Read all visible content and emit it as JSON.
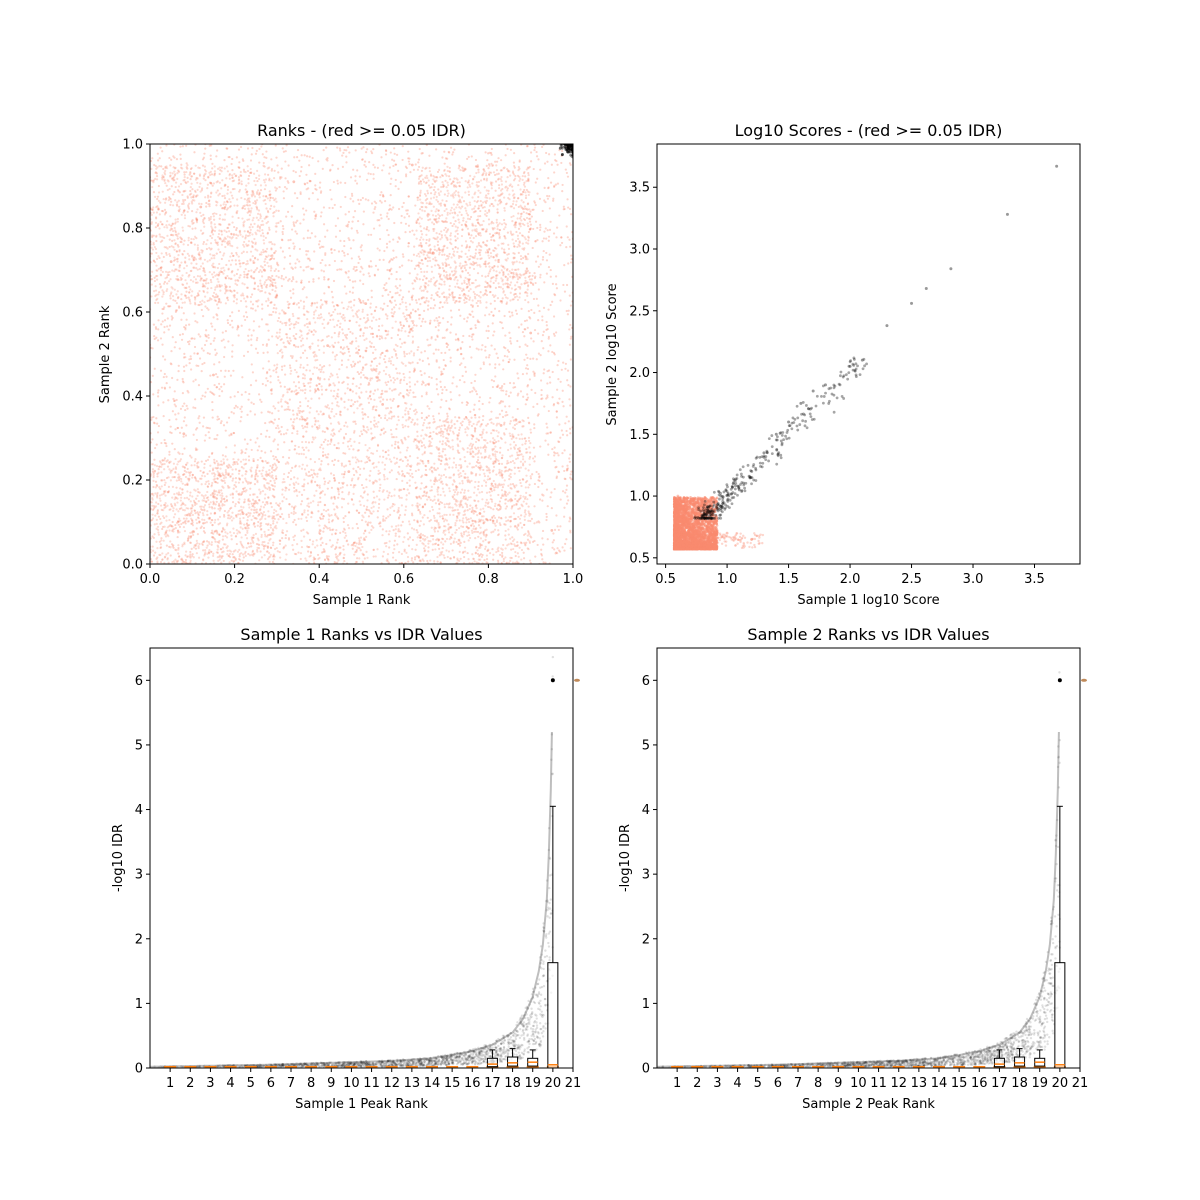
{
  "figure": {
    "background": "#ffffff"
  },
  "colors": {
    "fail": "#fa8a6f",
    "pass": "#000000",
    "box_median": "#ff7f0e",
    "frame": "#000000"
  },
  "chart_data": [
    {
      "type": "scatter",
      "title": "Ranks - (red >= 0.05 IDR)",
      "xlabel": "Sample 1 Rank",
      "ylabel": "Sample 2 Rank",
      "xlim": [
        0.0,
        1.0
      ],
      "ylim": [
        0.0,
        1.0
      ],
      "xticks": [
        {
          "v": 0.0,
          "label": "0.0"
        },
        {
          "v": 0.2,
          "label": "0.2"
        },
        {
          "v": 0.4,
          "label": "0.4"
        },
        {
          "v": 0.6,
          "label": "0.6"
        },
        {
          "v": 0.8,
          "label": "0.8"
        },
        {
          "v": 1.0,
          "label": "1.0"
        }
      ],
      "yticks": [
        {
          "v": 0.0,
          "label": "0.0"
        },
        {
          "v": 0.2,
          "label": "0.2"
        },
        {
          "v": 0.4,
          "label": "0.4"
        },
        {
          "v": 0.6,
          "label": "0.6"
        },
        {
          "v": 0.8,
          "label": "0.8"
        },
        {
          "v": 1.0,
          "label": "1.0"
        }
      ],
      "series": [
        {
          "color_key": "fail",
          "points": [
            [
              0.05,
              0.72
            ],
            [
              0.12,
              0.85
            ],
            [
              0.18,
              0.66
            ],
            [
              0.08,
              0.31
            ],
            [
              0.22,
              0.12
            ],
            [
              0.15,
              0.45
            ],
            [
              0.42,
              0.52
            ],
            [
              0.38,
              0.44
            ],
            [
              0.55,
              0.38
            ],
            [
              0.47,
              0.22
            ],
            [
              0.51,
              0.62
            ],
            [
              0.67,
              0.74
            ],
            [
              0.71,
              0.68
            ],
            [
              0.78,
              0.12
            ],
            [
              0.83,
              0.33
            ],
            [
              0.9,
              0.55
            ],
            [
              0.95,
              0.08
            ],
            [
              0.34,
              0.91
            ],
            [
              0.27,
              0.7
            ],
            [
              0.62,
              0.95
            ]
          ]
        },
        {
          "color_key": "pass",
          "points": [
            [
              0.975,
              0.975
            ],
            [
              0.985,
              0.99
            ],
            [
              0.99,
              0.985
            ],
            [
              0.97,
              0.99
            ],
            [
              0.995,
              0.995
            ]
          ]
        }
      ]
    },
    {
      "type": "scatter",
      "title": "Log10 Scores - (red >= 0.05 IDR)",
      "xlabel": "Sample 1 log10 Score",
      "ylabel": "Sample 2 log10 Score",
      "xlim": [
        0.43,
        3.87
      ],
      "ylim": [
        0.45,
        3.85
      ],
      "xticks": [
        {
          "v": 0.5,
          "label": "0.5"
        },
        {
          "v": 1.0,
          "label": "1.0"
        },
        {
          "v": 1.5,
          "label": "1.5"
        },
        {
          "v": 2.0,
          "label": "2.0"
        },
        {
          "v": 2.5,
          "label": "2.5"
        },
        {
          "v": 3.0,
          "label": "3.0"
        },
        {
          "v": 3.5,
          "label": "3.5"
        }
      ],
      "yticks": [
        {
          "v": 0.5,
          "label": "0.5"
        },
        {
          "v": 1.0,
          "label": "1.0"
        },
        {
          "v": 1.5,
          "label": "1.5"
        },
        {
          "v": 2.0,
          "label": "2.0"
        },
        {
          "v": 2.5,
          "label": "2.5"
        },
        {
          "v": 3.0,
          "label": "3.0"
        },
        {
          "v": 3.5,
          "label": "3.5"
        }
      ],
      "series": [
        {
          "color_key": "fail",
          "points": [
            [
              0.6,
              0.6
            ],
            [
              0.7,
              0.65
            ],
            [
              0.8,
              0.7
            ],
            [
              0.65,
              0.85
            ],
            [
              0.75,
              0.95
            ],
            [
              0.9,
              0.62
            ],
            [
              1.0,
              0.7
            ],
            [
              0.85,
              0.8
            ],
            [
              1.2,
              0.65
            ],
            [
              0.6,
              1.0
            ]
          ]
        },
        {
          "color_key": "pass",
          "points": [
            [
              0.85,
              0.88
            ],
            [
              0.95,
              1.0
            ],
            [
              1.05,
              1.1
            ],
            [
              1.1,
              1.05
            ],
            [
              1.2,
              1.2
            ],
            [
              1.3,
              1.35
            ],
            [
              1.4,
              1.5
            ],
            [
              1.5,
              1.6
            ],
            [
              1.6,
              1.75
            ],
            [
              1.7,
              1.85
            ],
            [
              1.8,
              1.9
            ],
            [
              2.0,
              2.05
            ],
            [
              2.1,
              2.1
            ],
            [
              2.3,
              2.38
            ],
            [
              2.5,
              2.56
            ],
            [
              2.62,
              2.68
            ],
            [
              2.82,
              2.84
            ],
            [
              3.28,
              3.28
            ],
            [
              3.68,
              3.67
            ]
          ]
        }
      ]
    },
    {
      "type": "box",
      "title": "Sample 1 Ranks vs IDR Values",
      "xlabel": "Sample 1 Peak Rank",
      "ylabel": "-log10 IDR",
      "xlim": [
        0,
        21
      ],
      "ylim": [
        0,
        6.5
      ],
      "xticks": [
        {
          "v": 1,
          "label": "1"
        },
        {
          "v": 2,
          "label": "2"
        },
        {
          "v": 3,
          "label": "3"
        },
        {
          "v": 4,
          "label": "4"
        },
        {
          "v": 5,
          "label": "5"
        },
        {
          "v": 6,
          "label": "6"
        },
        {
          "v": 7,
          "label": "7"
        },
        {
          "v": 8,
          "label": "8"
        },
        {
          "v": 9,
          "label": "9"
        },
        {
          "v": 10,
          "label": "10"
        },
        {
          "v": 11,
          "label": "11"
        },
        {
          "v": 12,
          "label": "12"
        },
        {
          "v": 13,
          "label": "13"
        },
        {
          "v": 14,
          "label": "14"
        },
        {
          "v": 15,
          "label": "15"
        },
        {
          "v": 16,
          "label": "16"
        },
        {
          "v": 17,
          "label": "17"
        },
        {
          "v": 18,
          "label": "18"
        },
        {
          "v": 19,
          "label": "19"
        },
        {
          "v": 20,
          "label": "20"
        },
        {
          "v": 21,
          "label": "21"
        }
      ],
      "yticks": [
        {
          "v": 0,
          "label": "0"
        },
        {
          "v": 1,
          "label": "1"
        },
        {
          "v": 2,
          "label": "2"
        },
        {
          "v": 3,
          "label": "3"
        },
        {
          "v": 4,
          "label": "4"
        },
        {
          "v": 5,
          "label": "5"
        },
        {
          "v": 6,
          "label": "6"
        }
      ],
      "idr_curve": [
        [
          0.0,
          0.02
        ],
        [
          2,
          0.03
        ],
        [
          4,
          0.04
        ],
        [
          6,
          0.05
        ],
        [
          8,
          0.07
        ],
        [
          10,
          0.09
        ],
        [
          12,
          0.11
        ],
        [
          14,
          0.15
        ],
        [
          15,
          0.2
        ],
        [
          16,
          0.26
        ],
        [
          17,
          0.36
        ],
        [
          18,
          0.55
        ],
        [
          18.5,
          0.75
        ],
        [
          19,
          1.1
        ],
        [
          19.3,
          1.5
        ],
        [
          19.5,
          1.9
        ],
        [
          19.7,
          2.6
        ],
        [
          19.8,
          3.3
        ],
        [
          19.9,
          4.3
        ],
        [
          19.95,
          5.2
        ],
        [
          20.0,
          6.0
        ]
      ],
      "boxes": [
        {
          "rank": 17,
          "q1": 0.02,
          "median": 0.06,
          "q3": 0.15,
          "whisker_high": 0.28
        },
        {
          "rank": 18,
          "q1": 0.03,
          "median": 0.08,
          "q3": 0.17,
          "whisker_high": 0.3
        },
        {
          "rank": 19,
          "q1": 0.03,
          "median": 0.09,
          "q3": 0.15,
          "whisker_high": 0.28
        },
        {
          "rank": 20,
          "q1": 0.0,
          "median": 0.05,
          "q3": 1.63,
          "whisker_high": 4.05
        }
      ],
      "outlier_top": 6.0
    },
    {
      "type": "box",
      "title": "Sample 2 Ranks vs IDR Values",
      "xlabel": "Sample 2 Peak Rank",
      "ylabel": "-log10 IDR",
      "xlim": [
        0,
        21
      ],
      "ylim": [
        0,
        6.5
      ],
      "xticks": [
        {
          "v": 1,
          "label": "1"
        },
        {
          "v": 2,
          "label": "2"
        },
        {
          "v": 3,
          "label": "3"
        },
        {
          "v": 4,
          "label": "4"
        },
        {
          "v": 5,
          "label": "5"
        },
        {
          "v": 6,
          "label": "6"
        },
        {
          "v": 7,
          "label": "7"
        },
        {
          "v": 8,
          "label": "8"
        },
        {
          "v": 9,
          "label": "9"
        },
        {
          "v": 10,
          "label": "10"
        },
        {
          "v": 11,
          "label": "11"
        },
        {
          "v": 12,
          "label": "12"
        },
        {
          "v": 13,
          "label": "13"
        },
        {
          "v": 14,
          "label": "14"
        },
        {
          "v": 15,
          "label": "15"
        },
        {
          "v": 16,
          "label": "16"
        },
        {
          "v": 17,
          "label": "17"
        },
        {
          "v": 18,
          "label": "18"
        },
        {
          "v": 19,
          "label": "19"
        },
        {
          "v": 20,
          "label": "20"
        },
        {
          "v": 21,
          "label": "21"
        }
      ],
      "yticks": [
        {
          "v": 0,
          "label": "0"
        },
        {
          "v": 1,
          "label": "1"
        },
        {
          "v": 2,
          "label": "2"
        },
        {
          "v": 3,
          "label": "3"
        },
        {
          "v": 4,
          "label": "4"
        },
        {
          "v": 5,
          "label": "5"
        },
        {
          "v": 6,
          "label": "6"
        }
      ],
      "idr_curve": [
        [
          0.0,
          0.02
        ],
        [
          2,
          0.03
        ],
        [
          4,
          0.04
        ],
        [
          6,
          0.05
        ],
        [
          8,
          0.07
        ],
        [
          10,
          0.09
        ],
        [
          12,
          0.11
        ],
        [
          14,
          0.15
        ],
        [
          15,
          0.2
        ],
        [
          16,
          0.26
        ],
        [
          17,
          0.36
        ],
        [
          18,
          0.55
        ],
        [
          18.5,
          0.75
        ],
        [
          19,
          1.1
        ],
        [
          19.3,
          1.5
        ],
        [
          19.5,
          1.9
        ],
        [
          19.7,
          2.6
        ],
        [
          19.8,
          3.3
        ],
        [
          19.9,
          4.3
        ],
        [
          19.95,
          5.2
        ],
        [
          20.0,
          6.0
        ]
      ],
      "boxes": [
        {
          "rank": 17,
          "q1": 0.02,
          "median": 0.06,
          "q3": 0.15,
          "whisker_high": 0.28
        },
        {
          "rank": 18,
          "q1": 0.03,
          "median": 0.08,
          "q3": 0.17,
          "whisker_high": 0.3
        },
        {
          "rank": 19,
          "q1": 0.03,
          "median": 0.09,
          "q3": 0.15,
          "whisker_high": 0.28
        },
        {
          "rank": 20,
          "q1": 0.0,
          "median": 0.05,
          "q3": 1.63,
          "whisker_high": 4.05
        }
      ],
      "outlier_top": 6.0
    }
  ]
}
